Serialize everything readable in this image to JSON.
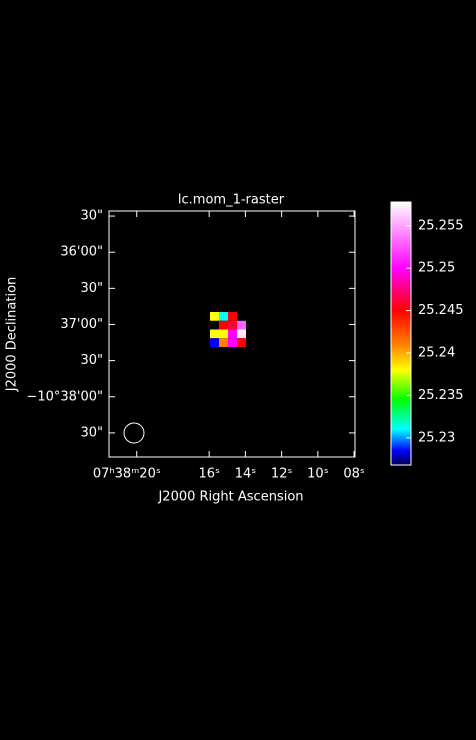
{
  "chart_data": {
    "type": "raster",
    "title": "lc.mom_1-raster",
    "xlabel": "J2000 Right Ascension",
    "ylabel": "J2000 Declination",
    "xlim": [
      21.53,
      7.95
    ],
    "xticks": [
      {
        "value": 20,
        "label": "07ʰ38ᵐ20ˢ"
      },
      {
        "value": 16,
        "label": "16ˢ"
      },
      {
        "value": 14,
        "label": "14ˢ"
      },
      {
        "value": 12,
        "label": "12ˢ"
      },
      {
        "value": 10,
        "label": "10ˢ"
      },
      {
        "value": 8,
        "label": "08ˢ"
      }
    ],
    "ylim": [
      -2330,
      -2125.8
    ],
    "yticks": [
      {
        "value": -2310,
        "label": "30\""
      },
      {
        "value": -2280,
        "label": "−10°38'00\""
      },
      {
        "value": -2250,
        "label": "30\""
      },
      {
        "value": -2220,
        "label": "37'00\""
      },
      {
        "value": -2190,
        "label": "30\""
      },
      {
        "value": -2160,
        "label": "36'00\""
      },
      {
        "value": -2130,
        "label": "30\""
      }
    ],
    "z": [
      [
        25.238,
        25.231,
        25.245,
        null
      ],
      [
        null,
        25.245,
        25.246,
        25.253
      ],
      [
        25.238,
        25.238,
        25.25,
        25.257
      ],
      [
        25.2285,
        25.241,
        25.25,
        25.245
      ]
    ],
    "colorbar_lim": [
      25.2268,
      25.2578
    ],
    "colorbar_ticks": [
      25.23,
      25.235,
      25.24,
      25.245,
      25.25,
      25.255
    ],
    "colormap": [
      {
        "value": 25.2268,
        "color": "#00004d"
      },
      {
        "value": 25.2285,
        "color": "#0000ff"
      },
      {
        "value": 25.231,
        "color": "#00ffff"
      },
      {
        "value": 25.2345,
        "color": "#00ff00"
      },
      {
        "value": 25.238,
        "color": "#ffff00"
      },
      {
        "value": 25.241,
        "color": "#ff8000"
      },
      {
        "value": 25.245,
        "color": "#ff0000"
      },
      {
        "value": 25.25,
        "color": "#ff00ff"
      },
      {
        "value": 25.2578,
        "color": "#ffffff"
      }
    ]
  }
}
